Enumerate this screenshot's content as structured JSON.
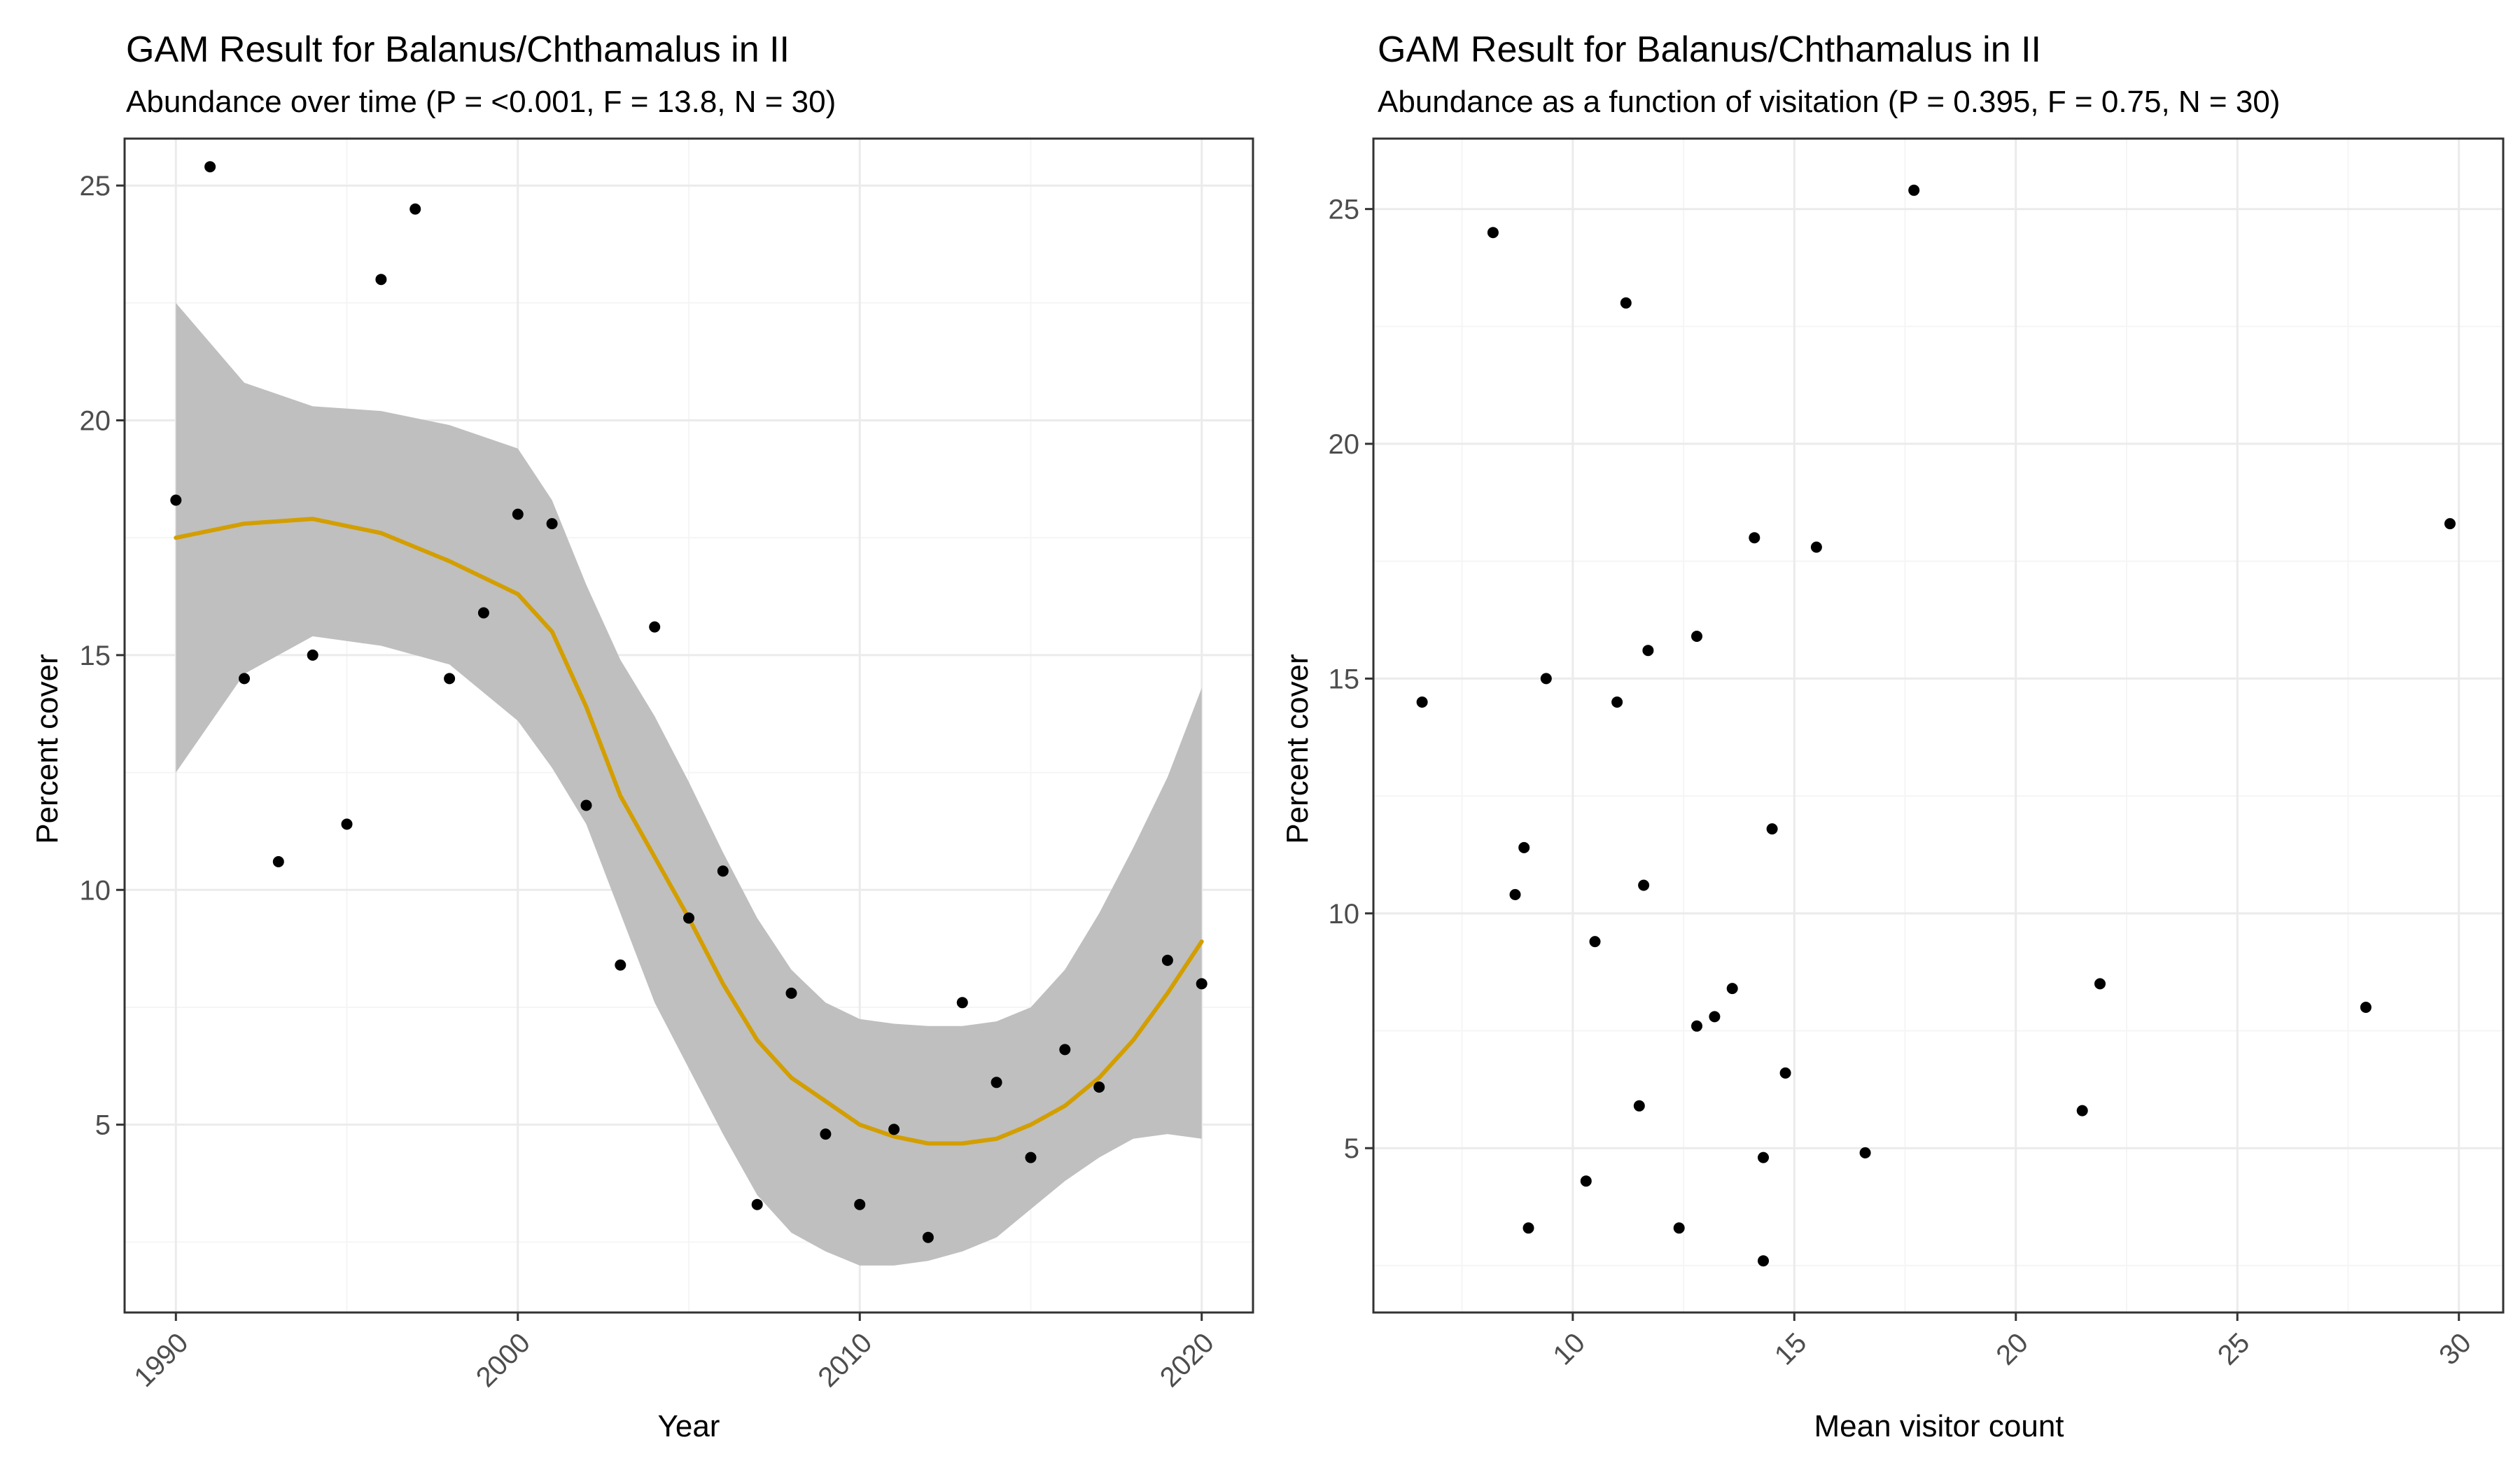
{
  "colors": {
    "point": "#000000",
    "smooth_line": "#D39E00",
    "ribbon": "#bfbfbf",
    "grid_major": "#ebebeb",
    "grid_minor": "#f5f5f5",
    "panel_border": "#333333"
  },
  "chart_data": [
    {
      "type": "scatter",
      "title": "GAM Result for Balanus/Chthamalus in  II",
      "subtitle": "Abundance over time (P = <0.001, F = 13.8, N = 30)",
      "xlabel": "Year",
      "ylabel": "Percent cover",
      "xlim": [
        1988.5,
        2021.5
      ],
      "ylim": [
        1.0,
        26.0
      ],
      "x_ticks": [
        1990,
        2000,
        2010,
        2020
      ],
      "y_ticks": [
        5,
        10,
        15,
        20,
        25
      ],
      "x_tick_rotation": 45,
      "grid": true,
      "legend": "none",
      "points": {
        "x": [
          1990,
          1991,
          1992,
          1993,
          1994,
          1995,
          1996,
          1997,
          1998,
          1999,
          2000,
          2001,
          2002,
          2003,
          2004,
          2005,
          2006,
          2007,
          2008,
          2009,
          2010,
          2011,
          2012,
          2013,
          2014,
          2015,
          2016,
          2017,
          2019,
          2020
        ],
        "y": [
          18.3,
          25.4,
          14.5,
          10.6,
          15.0,
          11.4,
          23.0,
          24.5,
          14.5,
          15.9,
          18.0,
          17.8,
          11.8,
          8.4,
          15.6,
          9.4,
          10.4,
          3.3,
          7.8,
          4.8,
          3.3,
          4.9,
          2.6,
          7.6,
          5.9,
          4.3,
          6.6,
          5.8,
          8.5,
          8.0
        ]
      },
      "smooth": {
        "method": "gam",
        "x": [
          1990,
          1992,
          1994,
          1996,
          1998,
          2000,
          2001,
          2002,
          2003,
          2004,
          2005,
          2006,
          2007,
          2008,
          2009,
          2010,
          2011,
          2012,
          2013,
          2014,
          2015,
          2016,
          2017,
          2018,
          2019,
          2020
        ],
        "y": [
          17.5,
          17.8,
          17.9,
          17.6,
          17.0,
          16.3,
          15.5,
          13.9,
          12.0,
          10.7,
          9.4,
          8.0,
          6.8,
          6.0,
          5.5,
          5.0,
          4.75,
          4.6,
          4.6,
          4.7,
          5.0,
          5.4,
          6.0,
          6.8,
          7.8,
          8.9
        ],
        "lower": [
          12.5,
          14.6,
          15.4,
          15.2,
          14.8,
          13.6,
          12.6,
          11.4,
          9.5,
          7.6,
          6.2,
          4.8,
          3.5,
          2.7,
          2.3,
          2.0,
          2.0,
          2.1,
          2.3,
          2.6,
          3.2,
          3.8,
          4.3,
          4.7,
          4.8,
          4.7
        ],
        "upper": [
          22.5,
          20.8,
          20.3,
          20.2,
          19.9,
          19.4,
          18.3,
          16.5,
          14.9,
          13.7,
          12.3,
          10.8,
          9.4,
          8.3,
          7.6,
          7.25,
          7.15,
          7.1,
          7.1,
          7.2,
          7.5,
          8.3,
          9.5,
          10.9,
          12.4,
          14.3
        ]
      }
    },
    {
      "type": "scatter",
      "title": "GAM Result for Balanus/Chthamalus in  II",
      "subtitle": "Abundance as a function of visitation (P = 0.395, F = 0.75, N = 30)",
      "xlabel": "Mean visitor count",
      "ylabel": "Percent cover",
      "xlim": [
        5.5,
        31.0
      ],
      "ylim": [
        1.5,
        26.5
      ],
      "x_ticks": [
        10,
        15,
        20,
        25,
        30
      ],
      "y_ticks": [
        5,
        10,
        15,
        20,
        25
      ],
      "x_tick_rotation": 45,
      "grid": true,
      "legend": "none",
      "points": {
        "x": [
          6.6,
          8.2,
          11.2,
          17.7,
          14.1,
          15.5,
          9.4,
          11.0,
          11.7,
          12.8,
          8.9,
          8.7,
          14.5,
          11.6,
          10.5,
          13.6,
          13.2,
          12.8,
          14.8,
          11.5,
          14.3,
          16.6,
          10.3,
          9.0,
          12.4,
          14.3,
          21.9,
          21.5,
          27.9,
          29.8
        ],
        "y": [
          14.5,
          24.5,
          23.0,
          25.4,
          18.0,
          17.8,
          15.0,
          14.5,
          15.6,
          15.9,
          11.4,
          10.4,
          11.8,
          10.6,
          9.4,
          8.4,
          7.8,
          7.6,
          6.6,
          5.9,
          4.8,
          4.9,
          4.3,
          3.3,
          3.3,
          2.6,
          8.5,
          5.8,
          8.0,
          18.3
        ]
      }
    }
  ]
}
